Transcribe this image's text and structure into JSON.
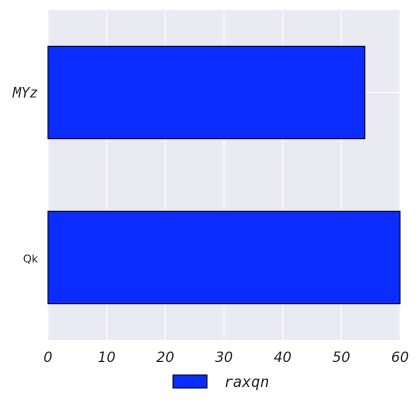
{
  "chart_data": {
    "type": "bar",
    "orientation": "horizontal",
    "categories": [
      "MYz",
      "Qk"
    ],
    "series": [
      {
        "name": "raxqn",
        "values": [
          54,
          60
        ],
        "color": "#0a2cff"
      }
    ],
    "xlabel": "",
    "ylabel": "",
    "xlim": [
      0,
      60
    ],
    "xticks": [
      "0",
      "10",
      "20",
      "30",
      "40",
      "50",
      "60"
    ],
    "grid": true,
    "legend_position": "bottom-center",
    "background_color": "#eaeaf2",
    "grid_color": "#ffffff"
  }
}
